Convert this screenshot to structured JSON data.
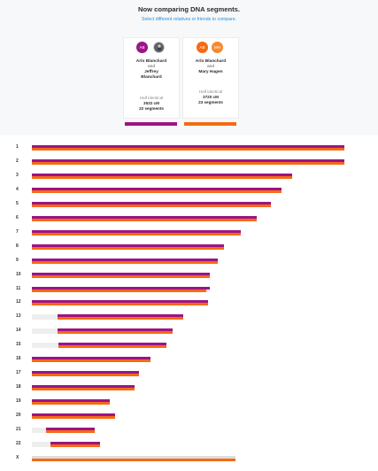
{
  "header": {
    "title": "Now comparing DNA segments.",
    "subtitle": "Select different relatives or friends to compare."
  },
  "colors": {
    "purple": "#9c1485",
    "orange": "#f56a13",
    "track": "#eeeeee"
  },
  "comparisons": [
    {
      "avatar1": "AB",
      "avatar2_icon": "person-photo-icon",
      "name1": "Arlo Blanchard",
      "and": "and",
      "name2_line1": "Jeffrey",
      "name2_line2": "Blanchard",
      "identical": "Half identical",
      "cm": "3532 cM",
      "segments": "22 segments"
    },
    {
      "avatar1": "AB",
      "avatar2": "MH",
      "name1": "Arlo Blanchard",
      "and": "and",
      "name2_line1": "Mary Hagen",
      "identical": "Half identical",
      "cm": "3720 cM",
      "segments": "23 segments"
    }
  ],
  "chromosomes": [
    {
      "label": "1",
      "length": 1.0,
      "purple": [
        [
          0,
          1.0
        ]
      ],
      "orange": [
        [
          0,
          1.0
        ]
      ]
    },
    {
      "label": "2",
      "length": 1.0,
      "purple": [
        [
          0,
          1.0
        ]
      ],
      "orange": [
        [
          0,
          1.0
        ]
      ]
    },
    {
      "label": "3",
      "length": 0.833,
      "purple": [
        [
          0,
          1.0
        ]
      ],
      "orange": [
        [
          0,
          1.0
        ]
      ]
    },
    {
      "label": "4",
      "length": 0.8,
      "purple": [
        [
          0,
          1.0
        ]
      ],
      "orange": [
        [
          0,
          1.0
        ]
      ]
    },
    {
      "label": "5",
      "length": 0.765,
      "purple": [
        [
          0,
          1.0
        ]
      ],
      "orange": [
        [
          0,
          1.0
        ]
      ]
    },
    {
      "label": "6",
      "length": 0.72,
      "purple": [
        [
          0,
          1.0
        ]
      ],
      "orange": [
        [
          0,
          1.0
        ]
      ]
    },
    {
      "label": "7",
      "length": 0.668,
      "purple": [
        [
          0,
          1.0
        ]
      ],
      "orange": [
        [
          0,
          1.0
        ]
      ]
    },
    {
      "label": "8",
      "length": 0.615,
      "purple": [
        [
          0,
          1.0
        ]
      ],
      "orange": [
        [
          0,
          1.0
        ]
      ]
    },
    {
      "label": "9",
      "length": 0.595,
      "purple": [
        [
          0,
          1.0
        ]
      ],
      "orange": [
        [
          0,
          1.0
        ]
      ]
    },
    {
      "label": "10",
      "length": 0.57,
      "purple": [
        [
          0,
          1.0
        ]
      ],
      "orange": [
        [
          0,
          1.0
        ]
      ]
    },
    {
      "label": "11",
      "length": 0.568,
      "purple": [
        [
          0,
          1.0
        ]
      ],
      "orange": [
        [
          0,
          0.985
        ]
      ]
    },
    {
      "label": "12",
      "length": 0.563,
      "purple": [
        [
          0,
          1.0
        ]
      ],
      "orange": [
        [
          0,
          1.0
        ]
      ]
    },
    {
      "label": "13",
      "length": 0.484,
      "purple": [
        [
          0.168,
          1.0
        ]
      ],
      "orange": [
        [
          0.168,
          1.0
        ]
      ]
    },
    {
      "label": "14",
      "length": 0.45,
      "purple": [
        [
          0.18,
          1.0
        ]
      ],
      "orange": [
        [
          0.18,
          1.0
        ]
      ]
    },
    {
      "label": "15",
      "length": 0.43,
      "purple": [
        [
          0.2,
          1.0
        ]
      ],
      "orange": [
        [
          0.2,
          1.0
        ]
      ]
    },
    {
      "label": "16",
      "length": 0.381,
      "purple": [
        [
          0,
          1.0
        ]
      ],
      "orange": [
        [
          0,
          1.0
        ]
      ]
    },
    {
      "label": "17",
      "length": 0.344,
      "purple": [
        [
          0,
          1.0
        ]
      ],
      "orange": [
        [
          0,
          1.0
        ]
      ]
    },
    {
      "label": "18",
      "length": 0.33,
      "purple": [
        [
          0,
          1.0
        ]
      ],
      "orange": [
        [
          0,
          1.0
        ]
      ]
    },
    {
      "label": "19",
      "length": 0.25,
      "purple": [
        [
          0,
          1.0
        ]
      ],
      "orange": [
        [
          0,
          1.0
        ]
      ]
    },
    {
      "label": "20",
      "length": 0.266,
      "purple": [
        [
          0,
          1.0
        ]
      ],
      "orange": [
        [
          0,
          1.0
        ]
      ]
    },
    {
      "label": "21",
      "length": 0.2,
      "purple": [
        [
          0.23,
          1.0
        ]
      ],
      "orange": [
        [
          0.23,
          1.0
        ]
      ]
    },
    {
      "label": "22",
      "length": 0.217,
      "purple": [
        [
          0.27,
          1.0
        ]
      ],
      "orange": [
        [
          0.27,
          1.0
        ]
      ]
    },
    {
      "label": "X",
      "length": 0.651,
      "purple": [],
      "orange": [
        [
          0,
          1.0
        ]
      ],
      "orange_full": true
    }
  ]
}
